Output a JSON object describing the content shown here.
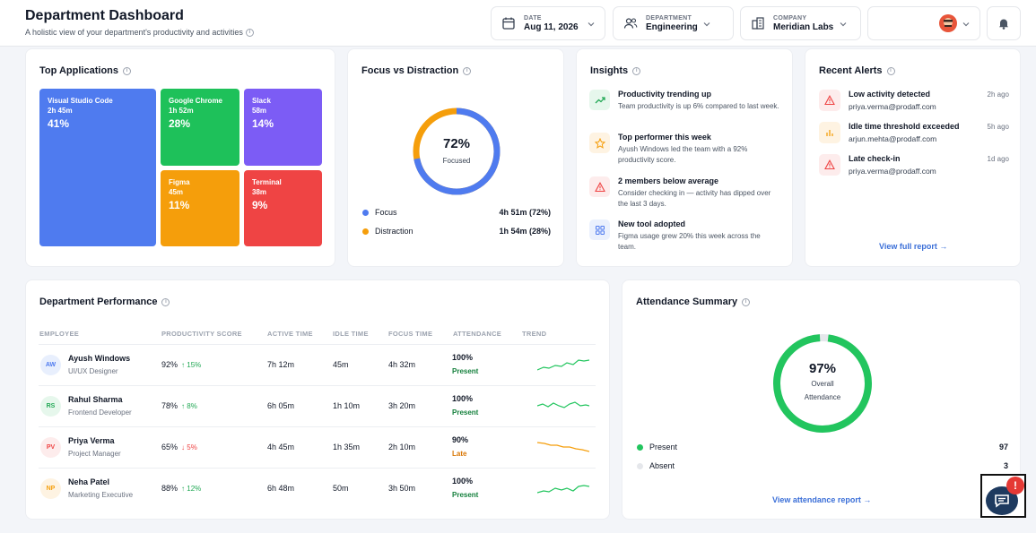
{
  "header": {
    "title": "Department Dashboard",
    "subtitle": "A holistic view of your department's productivity and activities",
    "date": {
      "label": "DATE",
      "value": "Aug 11, 2026"
    },
    "department": {
      "label": "DEPARTMENT",
      "value": "Engineering"
    },
    "company": {
      "label": "COMPANY",
      "value": "Meridian Labs"
    }
  },
  "top_apps": {
    "title": "Top Applications",
    "items": [
      {
        "name": "Visual Studio Code",
        "time": "2h 45m",
        "pct": "41%",
        "color": "#4f7bef"
      },
      {
        "name": "Google Chrome",
        "time": "1h 52m",
        "pct": "28%",
        "color": "#1ec15a"
      },
      {
        "name": "Slack",
        "time": "58m",
        "pct": "14%",
        "color": "#7c5cf5"
      },
      {
        "name": "Figma",
        "time": "45m",
        "pct": "11%",
        "color": "#f59e0b"
      },
      {
        "name": "Terminal",
        "time": "38m",
        "pct": "9%",
        "color": "#ef4444"
      }
    ]
  },
  "focus": {
    "title": "Focus vs Distraction",
    "center_value": "72%",
    "center_label": "Focused",
    "focus_fraction": 0.72,
    "legend": [
      {
        "name": "Focus",
        "value": "4h 51m (72%)",
        "color": "#4f7bef"
      },
      {
        "name": "Distraction",
        "value": "1h 54m (28%)",
        "color": "#f59e0b"
      }
    ]
  },
  "insights": {
    "title": "Insights",
    "items": [
      {
        "title": "Productivity trending up",
        "desc": "Team productivity is up 6% compared to last week.",
        "icon": "trend-up-icon"
      },
      {
        "title": "Top performer this week",
        "desc": "Ayush Windows led the team with a 92% productivity score.",
        "icon": "star-icon"
      },
      {
        "title": "2 members below average",
        "desc": "Consider checking in — activity has dipped over the last 3 days.",
        "icon": "warning-icon"
      },
      {
        "title": "New tool adopted",
        "desc": "Figma usage grew 20% this week across the team.",
        "icon": "grid-icon"
      }
    ]
  },
  "alerts": {
    "title": "Recent Alerts",
    "items": [
      {
        "title": "Low activity detected",
        "email": "priya.verma@prodaff.com",
        "time": "2h ago",
        "icon": "warning-icon"
      },
      {
        "title": "Idle time threshold exceeded",
        "email": "arjun.mehta@prodaff.com",
        "time": "5h ago",
        "icon": "bar-chart-icon"
      },
      {
        "title": "Late check-in",
        "email": "priya.verma@prodaff.com",
        "time": "1d ago",
        "icon": "warning-icon"
      }
    ],
    "link": "View full report →"
  },
  "performance": {
    "title": "Department Performance",
    "columns": [
      "EMPLOYEE",
      "PRODUCTIVITY SCORE",
      "ACTIVE TIME",
      "IDLE TIME",
      "FOCUS TIME",
      "ATTENDANCE",
      "TREND"
    ],
    "rows": [
      {
        "initials": "AW",
        "name": "Ayush Windows",
        "role": "UI/UX Designer",
        "score": "92%",
        "delta": "↑ 15%",
        "active": "7h 12m",
        "idle": "45m",
        "focus": "4h 32m",
        "attendance": "100%",
        "status": "Present"
      },
      {
        "initials": "RS",
        "name": "Rahul Sharma",
        "role": "Frontend Developer",
        "score": "78%",
        "delta": "↑ 8%",
        "active": "6h 05m",
        "idle": "1h 10m",
        "focus": "3h 20m",
        "attendance": "100%",
        "status": "Present"
      },
      {
        "initials": "PV",
        "name": "Priya Verma",
        "role": "Project Manager",
        "score": "65%",
        "delta": "↓ 5%",
        "active": "4h 45m",
        "idle": "1h 35m",
        "focus": "2h 10m",
        "attendance": "90%",
        "status": "Late"
      },
      {
        "initials": "NP",
        "name": "Neha Patel",
        "role": "Marketing Executive",
        "score": "88%",
        "delta": "↑ 12%",
        "active": "6h 48m",
        "idle": "50m",
        "focus": "3h 50m",
        "attendance": "100%",
        "status": "Present"
      }
    ]
  },
  "attendance": {
    "title": "Attendance Summary",
    "center_value": "97%",
    "center_label_1": "Overall",
    "center_label_2": "Attendance",
    "present_fraction": 0.97,
    "legend": [
      {
        "name": "Present",
        "value": "97",
        "color": "#22c55e"
      },
      {
        "name": "Absent",
        "value": "3",
        "color": "#e5e7eb"
      }
    ],
    "link": "View attendance report →"
  },
  "chat": {
    "badge": "!"
  }
}
